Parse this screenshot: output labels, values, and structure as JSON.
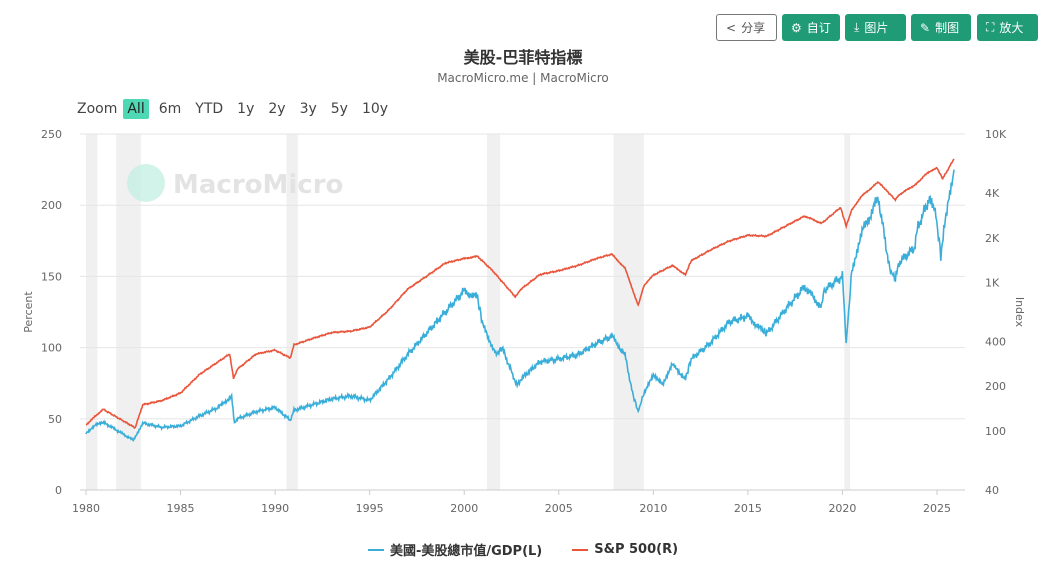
{
  "toolbar": {
    "share": "分享",
    "customize": "自订",
    "download": "图片",
    "draw": "制图",
    "fullscreen": "放大"
  },
  "header": {
    "title": "美股-巴菲特指標",
    "subtitle": "MacroMicro.me | MacroMicro"
  },
  "zoom": {
    "label": "Zoom",
    "options": [
      "All",
      "6m",
      "YTD",
      "1y",
      "2y",
      "3y",
      "5y",
      "10y"
    ],
    "active": "All"
  },
  "watermark": "MacroMicro",
  "colors": {
    "left": "#3aaed8",
    "right": "#e8553b",
    "recession": "#f0f0f0"
  },
  "chart_data": {
    "type": "line",
    "title": "美股-巴菲特指標",
    "ylabel_left": "Percent",
    "ylabel_right": "Index",
    "ylim_left": [
      0,
      250
    ],
    "yticks_left": [
      "0",
      "50",
      "100",
      "150",
      "200",
      "250"
    ],
    "ylim_right_log": [
      40,
      10000
    ],
    "yticks_right": [
      [
        "40",
        40
      ],
      [
        "100",
        100
      ],
      [
        "200",
        200
      ],
      [
        "400",
        400
      ],
      [
        "1K",
        1000
      ],
      [
        "2K",
        2000
      ],
      [
        "4K",
        4000
      ],
      [
        "10K",
        10000
      ]
    ],
    "xlim": [
      1979.7,
      2026.5
    ],
    "xticks": [
      "1980",
      "1985",
      "1990",
      "1995",
      "2000",
      "2005",
      "2010",
      "2015",
      "2020",
      "2025"
    ],
    "recessions": [
      [
        1980.0,
        1980.6
      ],
      [
        1981.6,
        1982.9
      ],
      [
        1990.6,
        1991.2
      ],
      [
        2001.2,
        2001.9
      ],
      [
        2007.9,
        2009.5
      ],
      [
        2020.1,
        2020.4
      ]
    ],
    "legend_position": "bottom",
    "series": [
      {
        "name": "美國-美股總市值/GDP(L)",
        "axis": "left",
        "points": [
          [
            1980,
            40
          ],
          [
            1980.5,
            46
          ],
          [
            1981,
            47
          ],
          [
            1982.5,
            35
          ],
          [
            1983,
            47
          ],
          [
            1984,
            44
          ],
          [
            1985,
            45
          ],
          [
            1986,
            52
          ],
          [
            1987,
            58
          ],
          [
            1987.7,
            66
          ],
          [
            1987.85,
            47
          ],
          [
            1988,
            50
          ],
          [
            1989,
            55
          ],
          [
            1990,
            58
          ],
          [
            1990.8,
            49
          ],
          [
            1991,
            56
          ],
          [
            1992,
            60
          ],
          [
            1993,
            64
          ],
          [
            1994,
            66
          ],
          [
            1995,
            63
          ],
          [
            1996,
            78
          ],
          [
            1997,
            95
          ],
          [
            1998,
            110
          ],
          [
            1999,
            125
          ],
          [
            2000,
            140
          ],
          [
            2000.7,
            135
          ],
          [
            2001,
            115
          ],
          [
            2001.7,
            95
          ],
          [
            2002,
            100
          ],
          [
            2002.8,
            73
          ],
          [
            2003,
            78
          ],
          [
            2004,
            90
          ],
          [
            2005,
            92
          ],
          [
            2006,
            95
          ],
          [
            2007,
            103
          ],
          [
            2007.8,
            108
          ],
          [
            2008.5,
            95
          ],
          [
            2008.9,
            68
          ],
          [
            2009.2,
            55
          ],
          [
            2009.5,
            68
          ],
          [
            2010,
            80
          ],
          [
            2010.5,
            75
          ],
          [
            2011,
            88
          ],
          [
            2011.7,
            78
          ],
          [
            2012,
            92
          ],
          [
            2013,
            103
          ],
          [
            2014,
            118
          ],
          [
            2015,
            122
          ],
          [
            2015.7,
            113
          ],
          [
            2016,
            110
          ],
          [
            2017,
            127
          ],
          [
            2018,
            143
          ],
          [
            2018.9,
            128
          ],
          [
            2019,
            140
          ],
          [
            2020,
            150
          ],
          [
            2020.2,
            103
          ],
          [
            2020.5,
            155
          ],
          [
            2021,
            180
          ],
          [
            2021.9,
            205
          ],
          [
            2022.5,
            155
          ],
          [
            2022.8,
            148
          ],
          [
            2023,
            160
          ],
          [
            2023.8,
            170
          ],
          [
            2024,
            185
          ],
          [
            2024.6,
            205
          ],
          [
            2024.9,
            197
          ],
          [
            2025.2,
            165
          ],
          [
            2025.6,
            205
          ],
          [
            2025.9,
            225
          ]
        ]
      },
      {
        "name": "S&P 500(R)",
        "axis": "right",
        "points": [
          [
            1980,
            110
          ],
          [
            1980.9,
            140
          ],
          [
            1982.6,
            105
          ],
          [
            1983,
            150
          ],
          [
            1984,
            160
          ],
          [
            1985,
            180
          ],
          [
            1986,
            240
          ],
          [
            1987.6,
            330
          ],
          [
            1987.8,
            225
          ],
          [
            1988,
            260
          ],
          [
            1989,
            330
          ],
          [
            1990,
            350
          ],
          [
            1990.8,
            310
          ],
          [
            1991,
            380
          ],
          [
            1992,
            420
          ],
          [
            1993,
            460
          ],
          [
            1994,
            470
          ],
          [
            1995,
            500
          ],
          [
            1996,
            650
          ],
          [
            1997,
            900
          ],
          [
            1998,
            1100
          ],
          [
            1999,
            1350
          ],
          [
            2000,
            1450
          ],
          [
            2000.7,
            1500
          ],
          [
            2001.5,
            1200
          ],
          [
            2002.7,
            800
          ],
          [
            2003,
            900
          ],
          [
            2004,
            1130
          ],
          [
            2005,
            1200
          ],
          [
            2006,
            1300
          ],
          [
            2007,
            1450
          ],
          [
            2007.8,
            1550
          ],
          [
            2008.5,
            1250
          ],
          [
            2009.2,
            700
          ],
          [
            2009.5,
            950
          ],
          [
            2010,
            1120
          ],
          [
            2011,
            1300
          ],
          [
            2011.7,
            1130
          ],
          [
            2012,
            1400
          ],
          [
            2013,
            1650
          ],
          [
            2014,
            1900
          ],
          [
            2015,
            2080
          ],
          [
            2016,
            2050
          ],
          [
            2017,
            2400
          ],
          [
            2018,
            2800
          ],
          [
            2018.9,
            2500
          ],
          [
            2019.9,
            3200
          ],
          [
            2020.2,
            2400
          ],
          [
            2020.5,
            3100
          ],
          [
            2021,
            3800
          ],
          [
            2021.9,
            4750
          ],
          [
            2022.8,
            3600
          ],
          [
            2023,
            3900
          ],
          [
            2023.9,
            4600
          ],
          [
            2024.5,
            5500
          ],
          [
            2025,
            5900
          ],
          [
            2025.3,
            5000
          ],
          [
            2025.9,
            6800
          ]
        ]
      }
    ]
  }
}
